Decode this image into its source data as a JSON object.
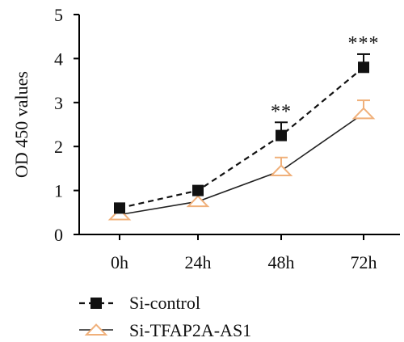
{
  "chart_data": {
    "type": "line",
    "title": "",
    "xlabel": "",
    "ylabel": "OD 450 values",
    "categories": [
      "0h",
      "24h",
      "48h",
      "72h"
    ],
    "ylim": [
      0,
      5
    ],
    "yticks": [
      0,
      1,
      2,
      3,
      4,
      5
    ],
    "grid": false,
    "legend_position": "bottom-left",
    "series": [
      {
        "name": "Si-control",
        "values": [
          0.6,
          1.0,
          2.25,
          3.8
        ],
        "errors": [
          0.05,
          0.05,
          0.3,
          0.3
        ],
        "line_style": "dashed",
        "marker": "square",
        "color": "#111111"
      },
      {
        "name": "Si-TFAP2A-AS1",
        "values": [
          0.45,
          0.75,
          1.45,
          2.75
        ],
        "errors": [
          0.05,
          0.05,
          0.3,
          0.3
        ],
        "line_style": "solid",
        "marker": "triangle",
        "color": "#f0b07a"
      }
    ],
    "annotations": [
      {
        "category": "48h",
        "text": "**"
      },
      {
        "category": "72h",
        "text": "***"
      }
    ]
  }
}
